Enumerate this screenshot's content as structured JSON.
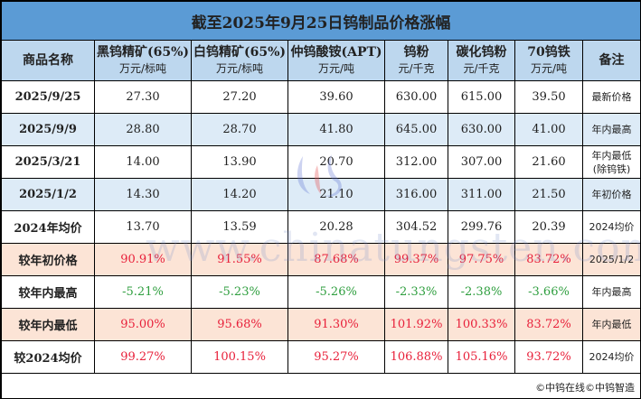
{
  "title": "截至2025年9月25日钨制品价格涨幅",
  "headers": [
    {
      "name": "商品名称",
      "unit": ""
    },
    {
      "name": "黑钨精矿(65%)",
      "unit": "万元/标吨"
    },
    {
      "name": "白钨精矿(65%)",
      "unit": "万元/标吨"
    },
    {
      "name": "仲钨酸铵(APT)",
      "unit": "万元/吨"
    },
    {
      "name": "钨粉",
      "unit": "元/千克"
    },
    {
      "name": "碳化钨粉",
      "unit": "元/千克"
    },
    {
      "name": "70钨铁",
      "unit": "万元/吨"
    },
    {
      "name": "备注",
      "unit": ""
    }
  ],
  "rows": [
    {
      "label": "2025/9/25",
      "values": [
        "27.30",
        "27.20",
        "39.60",
        "630.00",
        "615.00",
        "39.50"
      ],
      "note": "最新价格",
      "note2": ""
    },
    {
      "label": "2025/9/9",
      "values": [
        "28.80",
        "28.70",
        "41.80",
        "645.00",
        "630.00",
        "41.00"
      ],
      "note": "年内最高",
      "note2": ""
    },
    {
      "label": "2025/3/21",
      "values": [
        "14.00",
        "13.90",
        "20.70",
        "312.00",
        "307.00",
        "21.60"
      ],
      "note": "年内最低",
      "note2": "(除钨铁)"
    },
    {
      "label": "2025/1/2",
      "values": [
        "14.30",
        "14.20",
        "21.10",
        "316.00",
        "311.00",
        "21.50"
      ],
      "note": "年初价格",
      "note2": ""
    },
    {
      "label": "2024年均价",
      "values": [
        "13.70",
        "13.59",
        "20.28",
        "304.52",
        "299.76",
        "20.39"
      ],
      "note": "2024均价",
      "note2": ""
    },
    {
      "label": "较年初价格",
      "values": [
        "90.91%",
        "91.55%",
        "87.68%",
        "99.37%",
        "97.75%",
        "83.72%"
      ],
      "note": "2025/1/2",
      "note2": ""
    },
    {
      "label": "较年内最高",
      "values": [
        "-5.21%",
        "-5.23%",
        "-5.26%",
        "-2.33%",
        "-2.38%",
        "-3.66%"
      ],
      "note": "年内最高",
      "note2": ""
    },
    {
      "label": "较年内最低",
      "values": [
        "95.00%",
        "95.68%",
        "91.30%",
        "101.92%",
        "100.33%",
        "83.72%"
      ],
      "note": "年内最低",
      "note2": ""
    },
    {
      "label": "较2024均价",
      "values": [
        "99.27%",
        "100.15%",
        "95.27%",
        "106.88%",
        "105.16%",
        "93.72%"
      ],
      "note": "2024均价",
      "note2": ""
    }
  ],
  "footer": "©中钨在线©中钨智造",
  "watermark": "www.chinatungsten.com",
  "colors": {
    "title_bg": "#5b9bd5",
    "header_bg": "#bdd7ee",
    "blue_row": "#ddebf7",
    "pink_row": "#fce4d6",
    "increase": "#e8203a",
    "decrease": "#2e9e3e"
  }
}
